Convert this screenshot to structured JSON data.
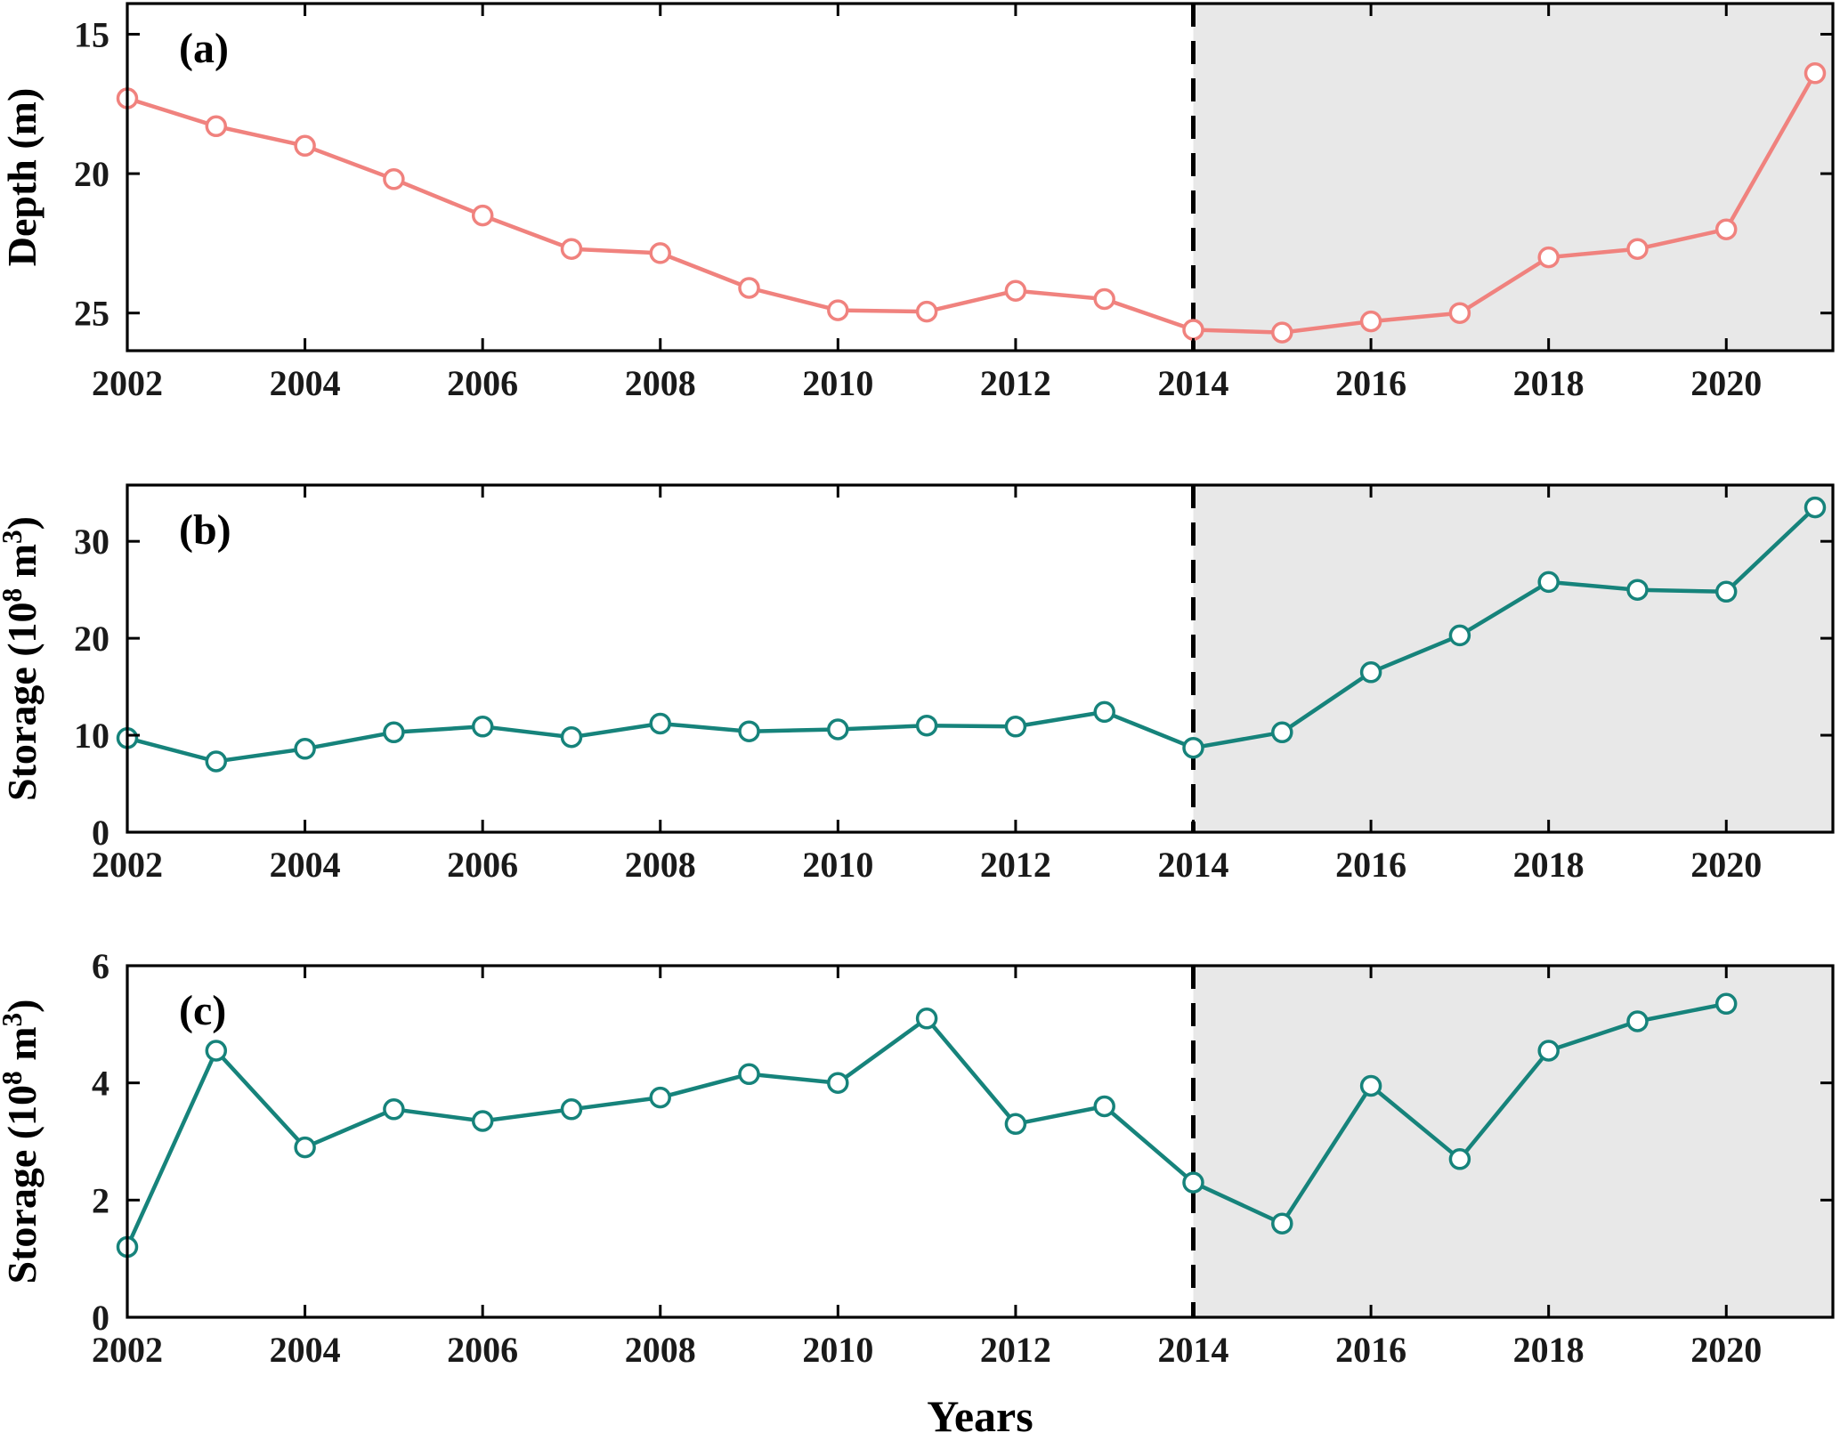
{
  "figure": {
    "xlabel": "Years",
    "highlight_color": "#E8E8E8",
    "dashed_line_year": 2014,
    "dashed_line_color": "#000000"
  },
  "chart_data": [
    {
      "panel_id": "a",
      "panel_label": "(a)",
      "type": "line",
      "ylabel": "Depth (m)",
      "color": "#F0827E",
      "x": [
        2002,
        2003,
        2004,
        2005,
        2006,
        2007,
        2008,
        2009,
        2010,
        2011,
        2012,
        2013,
        2014,
        2015,
        2016,
        2017,
        2018,
        2019,
        2020,
        2021
      ],
      "values": [
        17.3,
        18.3,
        19.0,
        20.2,
        21.5,
        22.7,
        22.85,
        24.1,
        24.9,
        24.95,
        24.2,
        24.5,
        25.6,
        25.7,
        25.3,
        25.0,
        23.0,
        22.7,
        22.0,
        16.4
      ],
      "y_ticks": [
        15,
        20,
        25
      ],
      "ylim": [
        13.9,
        26.35
      ],
      "y_inverted": true,
      "x_ticks": [
        2002,
        2004,
        2006,
        2008,
        2010,
        2012,
        2014,
        2016,
        2018,
        2020
      ],
      "xlim": [
        2002,
        2021.2
      ],
      "highlight_xstart": 2014,
      "grid": false,
      "legend": null
    },
    {
      "panel_id": "b",
      "panel_label": "(b)",
      "type": "line",
      "ylabel": "Storage (10^8 m^3)",
      "color": "#16837B",
      "x": [
        2002,
        2003,
        2004,
        2005,
        2006,
        2007,
        2008,
        2009,
        2010,
        2011,
        2012,
        2013,
        2014,
        2015,
        2016,
        2017,
        2018,
        2019,
        2020,
        2021
      ],
      "values": [
        9.7,
        7.3,
        8.6,
        10.3,
        10.9,
        9.8,
        11.2,
        10.4,
        10.6,
        11.0,
        10.9,
        12.4,
        8.7,
        10.3,
        16.5,
        20.3,
        25.8,
        25.0,
        24.8,
        33.5
      ],
      "y_ticks": [
        0,
        10,
        20,
        30
      ],
      "ylim": [
        0,
        35.8
      ],
      "y_inverted": false,
      "x_ticks": [
        2002,
        2004,
        2006,
        2008,
        2010,
        2012,
        2014,
        2016,
        2018,
        2020
      ],
      "xlim": [
        2002,
        2021.2
      ],
      "highlight_xstart": 2014,
      "grid": false,
      "legend": null
    },
    {
      "panel_id": "c",
      "panel_label": "(c)",
      "type": "line",
      "ylabel": "Storage (10^8 m^3)",
      "color": "#16837B",
      "x": [
        2002,
        2003,
        2004,
        2005,
        2006,
        2007,
        2008,
        2009,
        2010,
        2011,
        2012,
        2013,
        2014,
        2015,
        2016,
        2017,
        2018,
        2019,
        2020
      ],
      "values": [
        1.2,
        4.55,
        2.9,
        3.55,
        3.35,
        3.55,
        3.75,
        4.15,
        4.0,
        5.1,
        3.3,
        3.6,
        2.3,
        1.6,
        3.95,
        2.7,
        4.55,
        5.05,
        5.35
      ],
      "y_ticks": [
        0,
        2,
        4,
        6
      ],
      "ylim": [
        0,
        6
      ],
      "y_inverted": false,
      "x_ticks": [
        2002,
        2004,
        2006,
        2008,
        2010,
        2012,
        2014,
        2016,
        2018,
        2020
      ],
      "xlim": [
        2002,
        2021.2
      ],
      "highlight_xstart": 2014,
      "grid": false,
      "legend": null
    }
  ]
}
